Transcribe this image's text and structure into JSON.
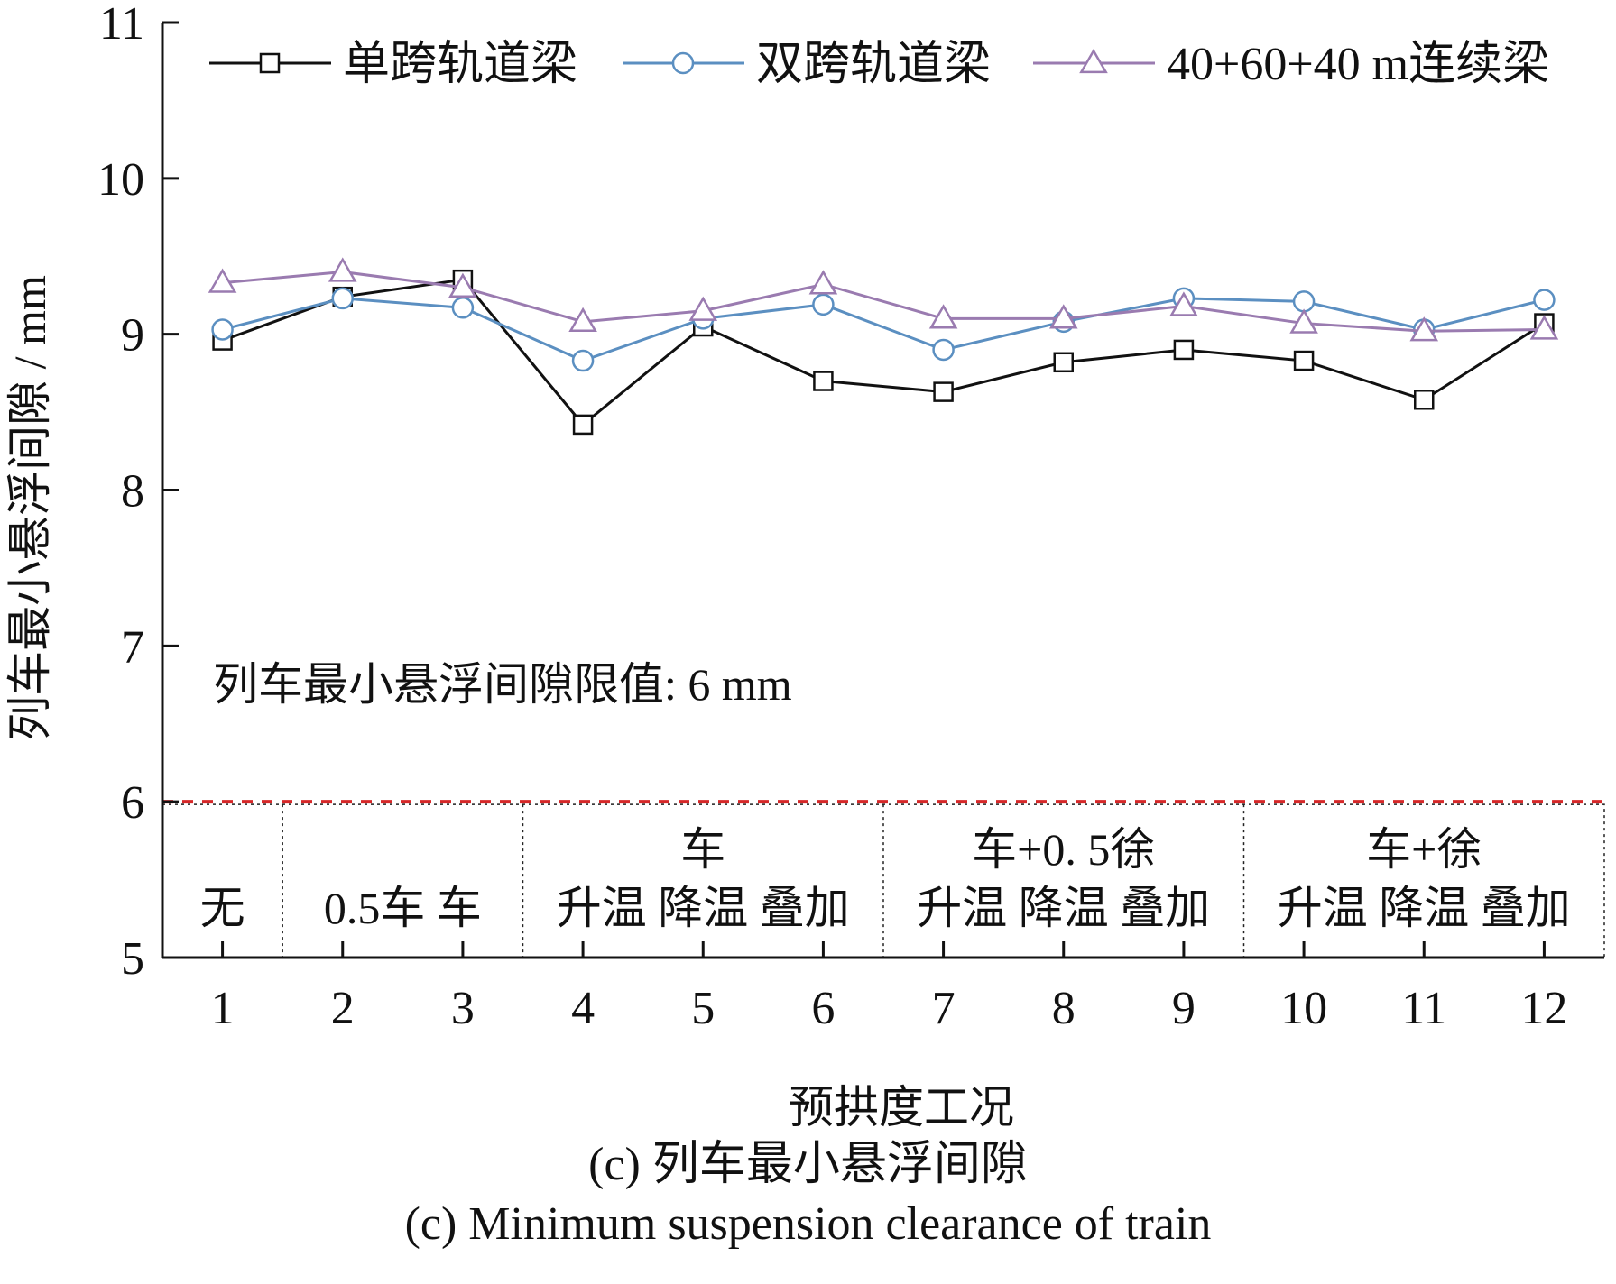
{
  "chart_data": {
    "type": "line",
    "xlabel": "预拱度工况",
    "ylabel": "列车最小悬浮间隙 / mm",
    "x": [
      1,
      2,
      3,
      4,
      5,
      6,
      7,
      8,
      9,
      10,
      11,
      12
    ],
    "xlim": [
      0.5,
      12.5
    ],
    "ylim": [
      5,
      11
    ],
    "yticks": [
      5,
      6,
      7,
      8,
      9,
      10,
      11
    ],
    "legend_position": "top",
    "series": [
      {
        "name": "单跨轨道梁",
        "marker": "square",
        "color": "#111111",
        "values": [
          8.96,
          9.24,
          9.35,
          8.42,
          9.05,
          8.7,
          8.63,
          8.82,
          8.9,
          8.83,
          8.58,
          9.07
        ]
      },
      {
        "name": "双跨轨道梁",
        "marker": "circle",
        "color": "#5b8fc1",
        "values": [
          9.03,
          9.23,
          9.17,
          8.83,
          9.1,
          9.19,
          8.9,
          9.08,
          9.23,
          9.21,
          9.03,
          9.22
        ]
      },
      {
        "name": "40+60+40 m连续梁",
        "marker": "triangle",
        "color": "#9a7bb0",
        "values": [
          9.33,
          9.4,
          9.3,
          9.08,
          9.15,
          9.32,
          9.1,
          9.1,
          9.18,
          9.07,
          9.02,
          9.03
        ]
      }
    ],
    "limit": {
      "value": 6,
      "color": "#d62728",
      "label": "列车最小悬浮间隙限值: 6 mm"
    },
    "groups": [
      {
        "from": 1,
        "to": 1,
        "top": "",
        "bottom": "无"
      },
      {
        "from": 2,
        "to": 3,
        "top": "",
        "bottom": "0.5车  车"
      },
      {
        "from": 4,
        "to": 6,
        "top": "车",
        "bottom": "升温 降温 叠加"
      },
      {
        "from": 7,
        "to": 9,
        "top": "车+0. 5徐",
        "bottom": "升温 降温 叠加"
      },
      {
        "from": 10,
        "to": 12,
        "top": "车+徐",
        "bottom": "升温 降温 叠加"
      }
    ]
  },
  "captions": {
    "zh": "(c) 列车最小悬浮间隙",
    "en": "(c) Minimum suspension clearance of train"
  }
}
